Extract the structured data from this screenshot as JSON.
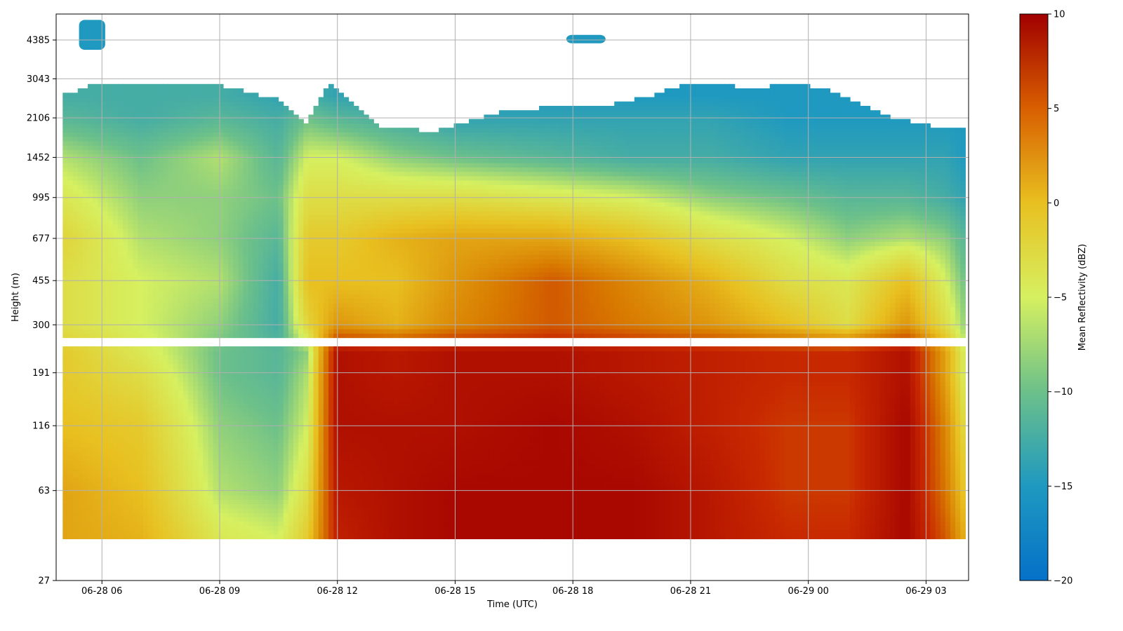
{
  "chart_data": {
    "type": "heatmap",
    "title": "",
    "xlabel": "Time (UTC)",
    "ylabel": "Height (m)",
    "x_ticks": [
      "06-28 06",
      "06-28 09",
      "06-28 12",
      "06-28 15",
      "06-28 18",
      "06-28 21",
      "06-29 00",
      "06-29 03"
    ],
    "y_ticks": [
      "27",
      "63",
      "116",
      "191",
      "300",
      "455",
      "677",
      "995",
      "1452",
      "2106",
      "3043",
      "4385"
    ],
    "y_scale": "log",
    "xlim": [
      "06-28 04:50",
      "06-29 04:05"
    ],
    "ylim": [
      27,
      5600
    ],
    "grid": true,
    "colorbar": {
      "label": "Mean Reflectivity (dBZ)",
      "range": [
        -20,
        10
      ],
      "ticks": [
        "10",
        "5",
        "0",
        "−5",
        "−10",
        "−15",
        "−20"
      ],
      "colormap": "blue-green-yellow-red"
    },
    "data_gap_m": [
      240,
      270
    ],
    "cloud_top_m": [
      [
        "06-28 05:00",
        2600
      ],
      [
        "06-28 06:00",
        2950
      ],
      [
        "06-28 07:30",
        2900
      ],
      [
        "06-28 09:00",
        2850
      ],
      [
        "06-28 10:30",
        2500
      ],
      [
        "06-28 11:10",
        2000
      ],
      [
        "06-28 11:50",
        2900
      ],
      [
        "06-28 13:00",
        1950
      ],
      [
        "06-28 14:30",
        1850
      ],
      [
        "06-28 16:00",
        2200
      ],
      [
        "06-28 18:00",
        2400
      ],
      [
        "06-28 19:00",
        2400
      ],
      [
        "06-28 20:00",
        2600
      ],
      [
        "06-28 21:00",
        2950
      ],
      [
        "06-28 22:30",
        2800
      ],
      [
        "06-28 23:45",
        2900
      ],
      [
        "06-29 00:30",
        2750
      ],
      [
        "06-29 02:00",
        2150
      ],
      [
        "06-29 03:30",
        1900
      ],
      [
        "06-29 04:00",
        1950
      ]
    ],
    "reflectivity_dbz": {
      "profile_heights_m": [
        40,
        63,
        116,
        191,
        230,
        300,
        455,
        677,
        995,
        1452,
        2106,
        2600
      ],
      "profiles": [
        {
          "time": "06-28 05:00",
          "values": [
            -3,
            -3,
            -5,
            -6,
            -6,
            -8,
            -8,
            -7,
            -9,
            -11,
            -14,
            -15
          ]
        },
        {
          "time": "06-28 07:00",
          "values": [
            -4,
            -5,
            -6,
            -8,
            -9,
            -10,
            -10,
            -11,
            -12,
            -13,
            -15,
            -15
          ]
        },
        {
          "time": "06-28 09:00",
          "values": [
            -9,
            -11,
            -12,
            -13,
            -13,
            -12,
            -11,
            -12,
            -12,
            -11,
            -14,
            -15
          ]
        },
        {
          "time": "06-28 10:30",
          "values": [
            -10,
            -12,
            -13,
            -14,
            -14,
            -15,
            -15,
            -14,
            -13,
            -14,
            -15,
            -16
          ]
        },
        {
          "time": "06-28 11:15",
          "values": [
            -6,
            -8,
            -10,
            -11,
            -12,
            -7,
            -5,
            -6,
            -8,
            -10,
            -13,
            -15
          ]
        },
        {
          "time": "06-28 12:00",
          "values": [
            6,
            7,
            8,
            8,
            8,
            -2,
            -5,
            -6,
            -8,
            -10,
            -14,
            -16
          ]
        },
        {
          "time": "06-28 13:30",
          "values": [
            8,
            8,
            8,
            7,
            7,
            -4,
            -5,
            -4,
            -8,
            -12,
            -15,
            -16
          ]
        },
        {
          "time": "06-28 15:00",
          "values": [
            9,
            9,
            8,
            8,
            8,
            -1,
            -2,
            -3,
            -8,
            -13,
            -16,
            -17
          ]
        },
        {
          "time": "06-28 17:30",
          "values": [
            9,
            9,
            9,
            8,
            8,
            2,
            2,
            -3,
            -9,
            -14,
            -16,
            -17
          ]
        },
        {
          "time": "06-28 19:30",
          "values": [
            9,
            9,
            8,
            7,
            7,
            0,
            -1,
            -5,
            -10,
            -15,
            -16,
            -17
          ]
        },
        {
          "time": "06-28 21:30",
          "values": [
            7,
            7,
            6,
            6,
            6,
            -2,
            -4,
            -8,
            -12,
            -15,
            -16,
            -17
          ]
        },
        {
          "time": "06-28 23:30",
          "values": [
            5,
            4,
            4,
            5,
            5,
            -5,
            -8,
            -10,
            -13,
            -16,
            -17,
            -17
          ]
        },
        {
          "time": "06-29 01:00",
          "values": [
            5,
            4,
            4,
            5,
            5,
            -8,
            -9,
            -12,
            -14,
            -16,
            -17,
            -17
          ]
        },
        {
          "time": "06-29 02:30",
          "values": [
            9,
            9,
            9,
            8,
            8,
            -2,
            -5,
            -11,
            -14,
            -16,
            -17,
            -17
          ]
        },
        {
          "time": "06-29 03:30",
          "values": [
            2,
            0,
            -1,
            -3,
            -3,
            -8,
            -10,
            -12,
            -15,
            -16,
            -17,
            -17
          ]
        },
        {
          "time": "06-29 04:00",
          "values": [
            -4,
            -6,
            -8,
            -10,
            -10,
            -12,
            -13,
            -14,
            -16,
            -17,
            -17,
            -17
          ]
        }
      ]
    },
    "isolated_cloud_patches": [
      {
        "time_start": "06-28 05:25",
        "time_end": "06-28 06:05",
        "height_low_m": 4000,
        "height_high_m": 5300,
        "dbz": -17
      },
      {
        "time_start": "06-28 17:50",
        "time_end": "06-28 18:50",
        "height_low_m": 4250,
        "height_high_m": 4600,
        "dbz": -17
      }
    ]
  }
}
